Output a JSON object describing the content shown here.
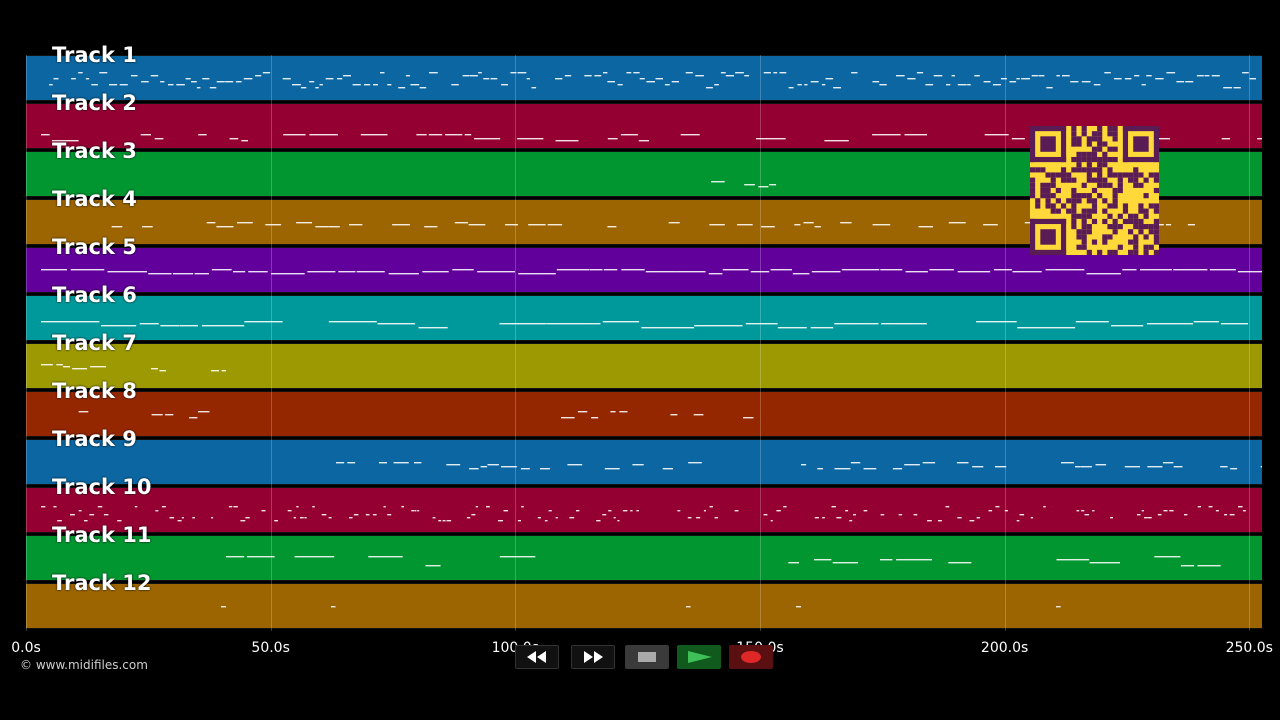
{
  "window": {
    "width": 1280,
    "height": 720
  },
  "tracks": [
    {
      "label": "Track 1",
      "color": "#0b66a1"
    },
    {
      "label": "Track 2",
      "color": "#950033"
    },
    {
      "label": "Track 3",
      "color": "#029631"
    },
    {
      "label": "Track 4",
      "color": "#9c6502"
    },
    {
      "label": "Track 5",
      "color": "#61009b"
    },
    {
      "label": "Track 6",
      "color": "#00999b"
    },
    {
      "label": "Track 7",
      "color": "#9c9902"
    },
    {
      "label": "Track 8",
      "color": "#952700"
    },
    {
      "label": "Track 9",
      "color": "#0b66a1"
    },
    {
      "label": "Track 10",
      "color": "#950033"
    },
    {
      "label": "Track 11",
      "color": "#029631"
    },
    {
      "label": "Track 12",
      "color": "#9c6502"
    }
  ],
  "time_axis": {
    "min": 0,
    "max": 252.6,
    "ticks": [
      {
        "value": 0,
        "label": "0.0s"
      },
      {
        "value": 50,
        "label": "50.0s"
      },
      {
        "value": 100,
        "label": "100.0s"
      },
      {
        "value": 150,
        "label": "150.0s"
      },
      {
        "value": 200,
        "label": "200.0s"
      },
      {
        "value": 250,
        "label": "250.0s"
      }
    ]
  },
  "copyright": "© www.midifiles.com",
  "controls": {
    "rewind": "rewind-icon",
    "fast_forward": "fast-forward-icon",
    "stop": "stop-icon",
    "play": "play-icon",
    "record": "record-icon"
  },
  "qr_code": {
    "color": "#ffd93a",
    "fg": "#5a1c54"
  }
}
